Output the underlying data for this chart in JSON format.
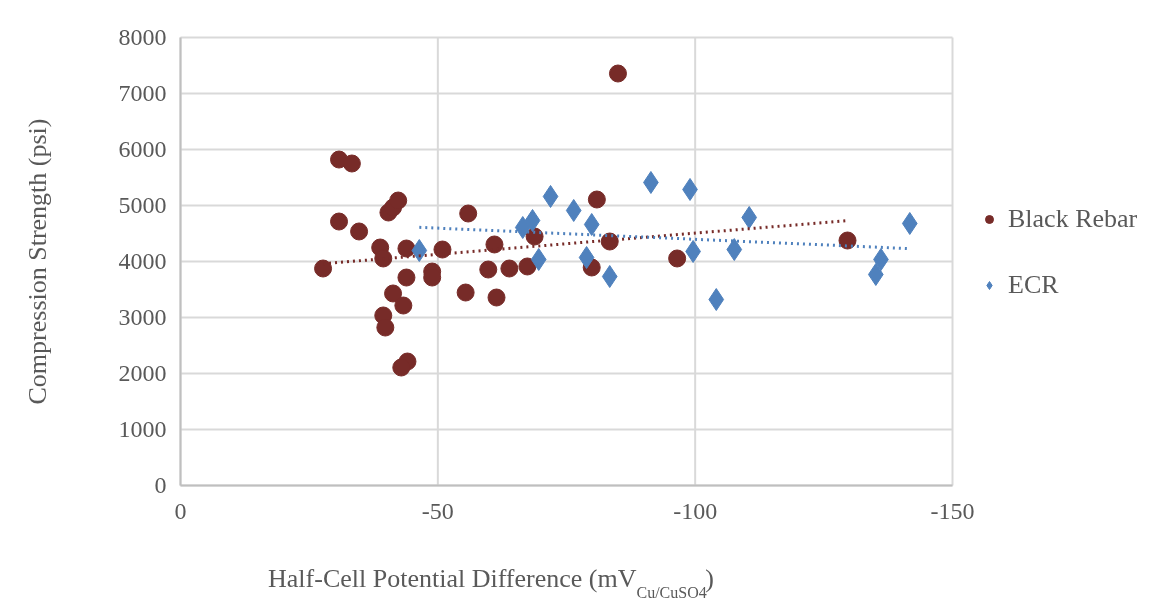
{
  "chart_data": {
    "type": "scatter",
    "xlabel": "Half-Cell Potential Difference (mV$_{Cu/CuSO4}$)",
    "ylabel": "Compression Strength (psi)",
    "xlim": [
      0,
      -150
    ],
    "xticks": [
      0,
      -50,
      -100,
      -150
    ],
    "ylim": [
      0,
      8000
    ],
    "yticks": [
      0,
      1000,
      2000,
      3000,
      4000,
      5000,
      6000,
      7000,
      8000
    ],
    "grid": true,
    "legend": "right",
    "series": [
      {
        "name": "Black Rebar",
        "color": "#772b28",
        "marker": "circle",
        "x": [
          -27.7,
          -30.8,
          -33.3,
          -30.8,
          -34.7,
          -38.8,
          -39.4,
          -40.4,
          -41.3,
          -42.3,
          -43.9,
          -43.9,
          -41.3,
          -43.3,
          -39.4,
          -39.8,
          -44.1,
          -42.9,
          -48.9,
          -48.9,
          -50.9,
          -55.9,
          -55.4,
          -61.0,
          -59.8,
          -61.4,
          -63.9,
          -67.4,
          -68.8,
          -80.9,
          -79.9,
          -83.4,
          -85.0,
          -96.5,
          -129.6
        ],
        "values": [
          3875,
          5821,
          5750,
          4714,
          4536,
          4250,
          4054,
          4875,
          4964,
          5089,
          4232,
          3714,
          3429,
          3214,
          3036,
          2821,
          2214,
          2107,
          3821,
          3714,
          4214,
          4857,
          3446,
          4304,
          3857,
          3357,
          3875,
          3911,
          4446,
          5107,
          3893,
          4357,
          7357,
          4054,
          4375
        ]
      },
      {
        "name": "ECR",
        "color": "#4f81bd",
        "marker": "diamond",
        "x": [
          -46.4,
          -66.5,
          -68.4,
          -71.9,
          -76.4,
          -79.9,
          -69.6,
          -78.9,
          -83.4,
          -91.4,
          -99.0,
          -99.6,
          -104.1,
          -107.6,
          -110.5,
          -136.1,
          -135.1,
          -141.7
        ],
        "values": [
          4196,
          4607,
          4732,
          5161,
          4911,
          4661,
          4036,
          4071,
          3732,
          5411,
          5286,
          4179,
          3321,
          4214,
          4786,
          4036,
          3768,
          4679
        ]
      },
      {
        "type": "line",
        "color": "#772b28",
        "line_style": "dotted",
        "x": [
          -27.7,
          -129.6
        ],
        "values": [
          3960,
          4730
        ]
      },
      {
        "type": "line",
        "color": "#4f81bd",
        "line_style": "dotted",
        "x": [
          -46.4,
          -141.7
        ],
        "values": [
          4610,
          4230
        ]
      }
    ]
  }
}
